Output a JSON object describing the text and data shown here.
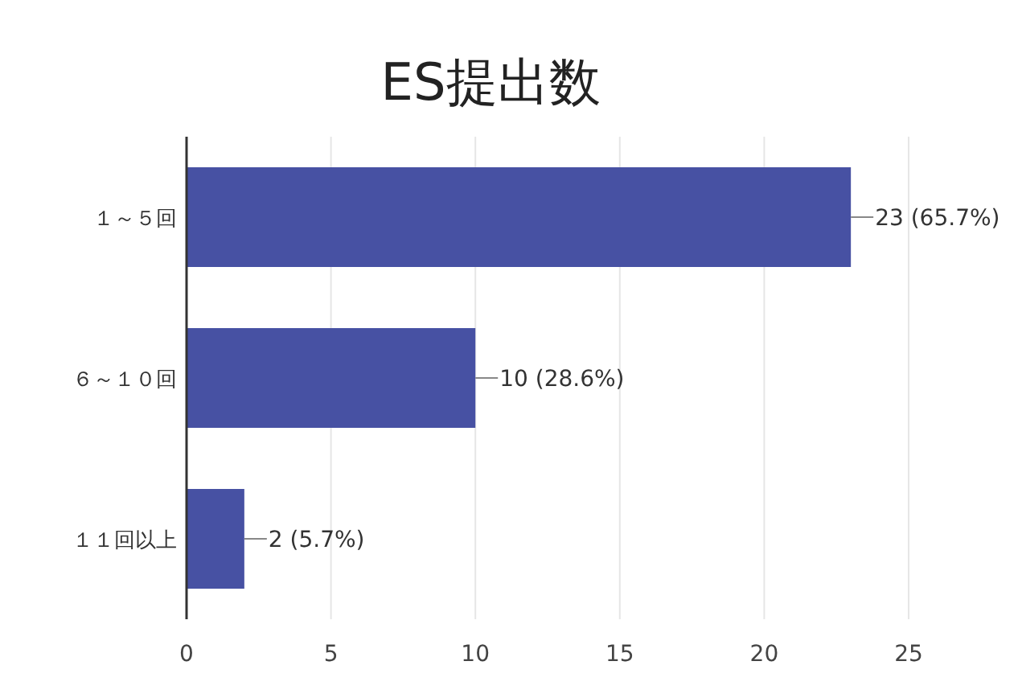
{
  "chart_data": {
    "type": "bar",
    "orientation": "horizontal",
    "title": "ES提出数",
    "categories": [
      "１～５回",
      "６～１０回",
      "１１回以上"
    ],
    "values": [
      23,
      10,
      2
    ],
    "value_labels": [
      "23 (65.7%)",
      "10 (28.6%)",
      "2 (5.7%)"
    ],
    "color": "#4751a3",
    "xlim": [
      0,
      25
    ],
    "xticks": [
      0,
      5,
      10,
      15,
      20,
      25
    ],
    "grid": "x"
  }
}
